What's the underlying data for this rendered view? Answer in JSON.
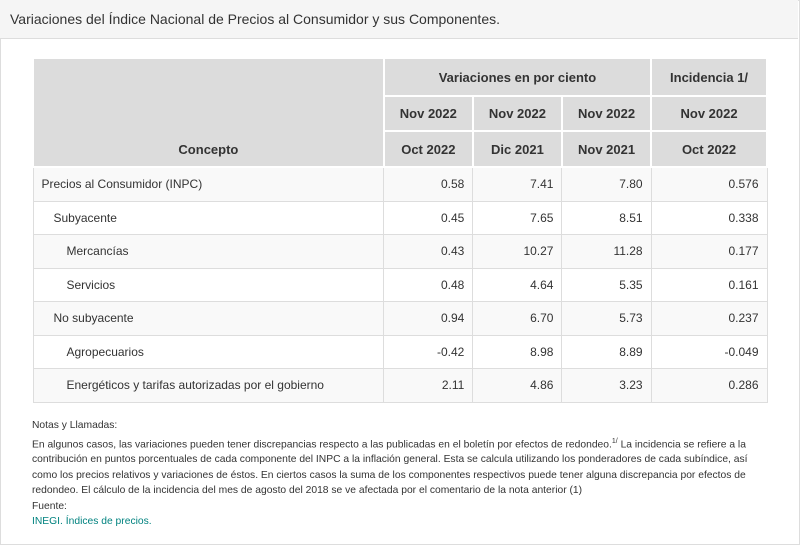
{
  "title": "Variaciones del Índice Nacional de Precios al Consumidor y sus Componentes.",
  "table": {
    "concept_header": "Concepto",
    "group_variaciones": "Variaciones en por ciento",
    "group_incidencia": "Incidencia 1/",
    "columns": [
      {
        "top": "Nov 2022",
        "bottom": "Oct 2022"
      },
      {
        "top": "Nov 2022",
        "bottom": "Dic 2021"
      },
      {
        "top": "Nov 2022",
        "bottom": "Nov 2021"
      },
      {
        "top": "Nov 2022",
        "bottom": "Oct 2022"
      }
    ],
    "rows": [
      {
        "concepto": "Precios al Consumidor (INPC)",
        "level": 0,
        "values": [
          "0.58",
          "7.41",
          "7.80",
          "0.576"
        ]
      },
      {
        "concepto": "Subyacente",
        "level": 1,
        "values": [
          "0.45",
          "7.65",
          "8.51",
          "0.338"
        ]
      },
      {
        "concepto": "Mercancías",
        "level": 2,
        "values": [
          "0.43",
          "10.27",
          "11.28",
          "0.177"
        ]
      },
      {
        "concepto": "Servicios",
        "level": 2,
        "values": [
          "0.48",
          "4.64",
          "5.35",
          "0.161"
        ]
      },
      {
        "concepto": "No subyacente",
        "level": 1,
        "values": [
          "0.94",
          "6.70",
          "5.73",
          "0.237"
        ]
      },
      {
        "concepto": "Agropecuarios",
        "level": 2,
        "values": [
          "-0.42",
          "8.98",
          "8.89",
          "-0.049"
        ]
      },
      {
        "concepto": "Energéticos y tarifas autorizadas por el gobierno",
        "level": 2,
        "values": [
          "2.11",
          "4.86",
          "3.23",
          "0.286"
        ]
      }
    ]
  },
  "notes": {
    "heading": "Notas y Llamadas:",
    "text1": "En algunos casos, las variaciones pueden tener discrepancias respecto a las publicadas en el boletín por efectos de redondeo.",
    "sup": "1/",
    "text2": " La incidencia se refiere a la contribución en puntos porcentuales de cada componente del INPC a la inflación general. Esta se calcula utilizando los ponderadores de cada subíndice, así como los precios relativos y variaciones de éstos. En ciertos casos la suma de los componentes respectivos puede tener alguna discrepancia por efectos de redondeo. El cálculo de la incidencia del mes de agosto del 2018 se ve afectada por el comentario de la nota anterior (1)",
    "source_label": "Fuente:",
    "source_link": "INEGI. Índices de precios."
  },
  "colors": {
    "link": "#00827f",
    "header_bg": "#dcdcdc"
  }
}
